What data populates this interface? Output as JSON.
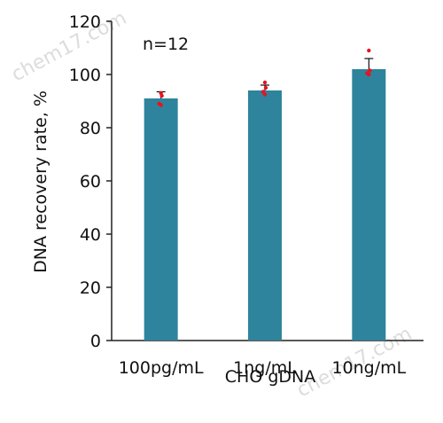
{
  "watermark": "chem17.com",
  "chart_data": {
    "type": "bar",
    "categories": [
      "100pg/mL",
      "1ng/mL",
      "10ng/mL"
    ],
    "values": [
      91,
      94,
      102
    ],
    "error": [
      2.5,
      2,
      4
    ],
    "points": [
      [
        93,
        92,
        89,
        88.5
      ],
      [
        97,
        95,
        93.5,
        92.5
      ],
      [
        109,
        101.5,
        100.5,
        100
      ]
    ],
    "annotation": "n=12",
    "xlabel": "CHO gDNA",
    "ylabel": "DNA recovery rate, %",
    "ylim": [
      0,
      120
    ],
    "yticks": [
      0,
      20,
      40,
      60,
      80,
      100,
      120
    ],
    "grid": false,
    "colors": {
      "bar": "#2e849c",
      "points": "#e8131f",
      "axis": "#222222"
    }
  }
}
